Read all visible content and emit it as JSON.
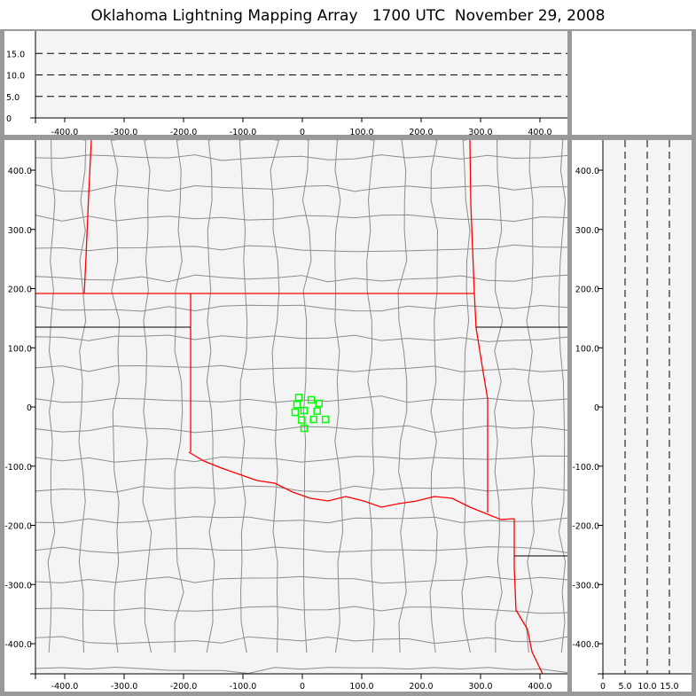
{
  "title": "Oklahoma Lightning Mapping Array   1700 UTC  November 29, 2008",
  "colors": {
    "state_border": "#ff0000",
    "county_border": "#8c8c8c",
    "panel_bg": "#f4f4f4",
    "frame": "#999999",
    "source_marker": "#00ff00"
  },
  "chart_data": [
    {
      "type": "scatter",
      "panel": "plan-view",
      "xlim": [
        -450,
        450
      ],
      "ylim": [
        -450,
        450
      ],
      "xticks": [
        "-400.0",
        "-300.0",
        "-200.0",
        "-100.0",
        "0",
        "100.0",
        "200.0",
        "300.0",
        "400.0"
      ],
      "yticks": [
        "-400.0",
        "-300.0",
        "-200.0",
        "-100.0",
        "0",
        "100.0",
        "200.0",
        "300.0",
        "400.0"
      ],
      "basemap": "state and county boundaries",
      "series": [
        {
          "marker": "hollow-square",
          "color": "#00ff00",
          "x": [
            -6,
            15,
            28,
            -9,
            3,
            -12,
            25,
            -1,
            19,
            39,
            3
          ],
          "y": [
            16,
            12,
            6,
            4,
            -6,
            -9,
            -7,
            -22,
            -21,
            -21,
            -36
          ]
        }
      ]
    },
    {
      "type": "scatter",
      "panel": "east-west-altitude",
      "xlim": [
        -450,
        450
      ],
      "ylim": [
        0,
        20
      ],
      "xticks": [
        "-400.0",
        "-300.0",
        "-200.0",
        "-100.0",
        "0",
        "100.0",
        "200.0",
        "300.0",
        "400.0"
      ],
      "yticks": [
        "0",
        "5.0",
        "10.0",
        "15.0"
      ],
      "gridlines": [
        5,
        10,
        15
      ],
      "series": []
    },
    {
      "type": "scatter",
      "panel": "altitude-north-south",
      "xlim": [
        0,
        20
      ],
      "ylim": [
        -450,
        450
      ],
      "xticks": [
        "0",
        "5.0",
        "10.0",
        "15.0"
      ],
      "yticks": [
        "-400.0",
        "-300.0",
        "-200.0",
        "-100.0",
        "0",
        "100.0",
        "200.0",
        "300.0",
        "400.0"
      ],
      "gridlines": [
        5,
        10,
        15
      ],
      "series": []
    }
  ]
}
